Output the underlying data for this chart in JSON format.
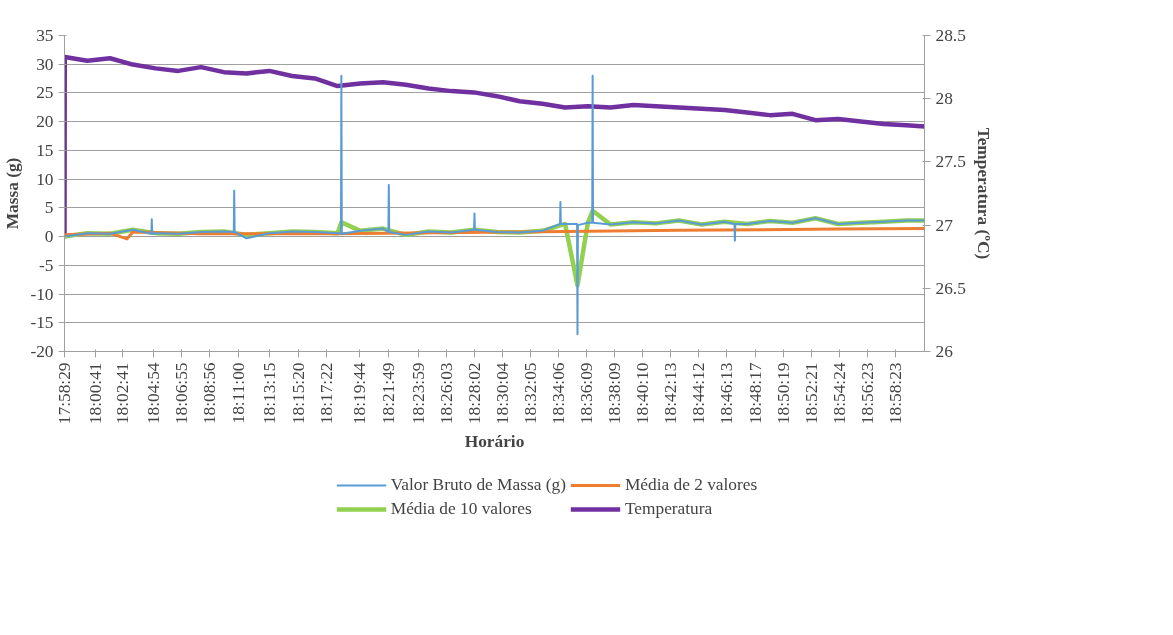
{
  "chart_data": {
    "type": "line",
    "xlabel": "Horário",
    "ylabel": "Massa (g)",
    "y2label": "Temperatura (ºC)",
    "xlim": [
      17.9747,
      19.0084
    ],
    "xticks": [
      {
        "value": 17.97472,
        "label": "17:58:29"
      },
      {
        "value": 18.01139,
        "label": "18:00:41"
      },
      {
        "value": 18.04472,
        "label": "18:02:41"
      },
      {
        "value": 18.08167,
        "label": "18:04:54"
      },
      {
        "value": 18.11528,
        "label": "18:06:55"
      },
      {
        "value": 18.14889,
        "label": "18:08:56"
      },
      {
        "value": 18.18333,
        "label": "18:11:00"
      },
      {
        "value": 18.22083,
        "label": "18:13:15"
      },
      {
        "value": 18.25556,
        "label": "18:15:20"
      },
      {
        "value": 18.28944,
        "label": "18:17:22"
      },
      {
        "value": 18.32889,
        "label": "18:19:44"
      },
      {
        "value": 18.36361,
        "label": "18:21:49"
      },
      {
        "value": 18.39972,
        "label": "18:23:59"
      },
      {
        "value": 18.43417,
        "label": "18:26:03"
      },
      {
        "value": 18.46722,
        "label": "18:28:02"
      },
      {
        "value": 18.50111,
        "label": "18:30:04"
      },
      {
        "value": 18.53472,
        "label": "18:32:05"
      },
      {
        "value": 18.56833,
        "label": "18:34:06"
      },
      {
        "value": 18.6025,
        "label": "18:36:09"
      },
      {
        "value": 18.63583,
        "label": "18:38:09"
      },
      {
        "value": 18.66944,
        "label": "18:40:10"
      },
      {
        "value": 18.70361,
        "label": "18:42:13"
      },
      {
        "value": 18.73667,
        "label": "18:44:12"
      },
      {
        "value": 18.77028,
        "label": "18:46:13"
      },
      {
        "value": 18.80472,
        "label": "18:48:17"
      },
      {
        "value": 18.83861,
        "label": "18:50:19"
      },
      {
        "value": 18.8725,
        "label": "18:52:21"
      },
      {
        "value": 18.90667,
        "label": "18:54:24"
      },
      {
        "value": 18.93972,
        "label": "18:56:23"
      },
      {
        "value": 18.97306,
        "label": "18:58:23"
      }
    ],
    "ylim": [
      -20,
      35
    ],
    "yticks": [
      -20,
      -15,
      -10,
      -5,
      0,
      5,
      10,
      15,
      20,
      25,
      30,
      35
    ],
    "y2lim": [
      26,
      28.5
    ],
    "y2ticks": [
      26,
      26.5,
      27,
      27.5,
      28,
      28.5
    ],
    "grid": "y",
    "legend": "bottom",
    "marker": "none",
    "line_style": "solid",
    "series": [
      {
        "name": "Valor Bruto de Massa (g)",
        "color": "#5b9bd5",
        "x": [
          17.9747,
          18.0021,
          18.0294,
          18.0568,
          18.0791,
          18.0796,
          18.0801,
          18.0841,
          18.1115,
          18.1388,
          18.1662,
          18.1782,
          18.1787,
          18.1792,
          18.1935,
          18.2209,
          18.2482,
          18.2756,
          18.3029,
          18.307,
          18.3075,
          18.308,
          18.3303,
          18.3576,
          18.364,
          18.3645,
          18.365,
          18.385,
          18.4123,
          18.4397,
          18.467,
          18.4675,
          18.468,
          18.4944,
          18.5217,
          18.5491,
          18.5703,
          18.5708,
          18.5713,
          18.5764,
          18.5908,
          18.5913,
          18.5918,
          18.6038,
          18.609,
          18.6095,
          18.61,
          18.6311,
          18.6585,
          18.6858,
          18.7132,
          18.7405,
          18.7679,
          18.78,
          18.7805,
          18.781,
          18.7952,
          18.8226,
          18.8499,
          18.8773,
          18.9046,
          18.932,
          18.9593,
          18.9867,
          19.0084
        ],
        "values": [
          0.0,
          0.6,
          0.5,
          1.2,
          0.5,
          3,
          0.5,
          0.6,
          0.5,
          0.8,
          0.9,
          0.8,
          8,
          0.8,
          -0.3,
          0.6,
          0.9,
          0.8,
          0.6,
          0.5,
          28,
          0.5,
          1.0,
          1.4,
          0.8,
          9,
          0.8,
          0.3,
          0.9,
          0.7,
          1.2,
          4,
          1.2,
          0.8,
          0.7,
          1.0,
          2.2,
          6,
          2.2,
          2.2,
          2.2,
          -17,
          2.0,
          2.4,
          2.4,
          28,
          2.4,
          2.1,
          2.5,
          2.3,
          2.8,
          2.1,
          2.6,
          2.2,
          -0.7,
          2.2,
          2.2,
          2.7,
          2.4,
          3.2,
          2.2,
          2.4,
          2.6,
          2.8,
          2.8
        ]
      },
      {
        "name": "Média de 2 valores",
        "color": "#ed7d31",
        "x": [
          17.9747,
          18.0294,
          18.0499,
          18.0568,
          18.1388,
          18.3029,
          18.5217,
          18.7132,
          18.9046,
          19.0084
        ],
        "values": [
          0.3,
          0.6,
          -0.4,
          0.8,
          0.5,
          0.5,
          0.8,
          1.1,
          1.3,
          1.4
        ]
      },
      {
        "name": "Média de 10 valores",
        "color": "#92d050",
        "x": [
          17.9747,
          18.0021,
          18.0294,
          18.0568,
          18.0841,
          18.1115,
          18.1388,
          18.1662,
          18.1935,
          18.2209,
          18.2482,
          18.2756,
          18.3029,
          18.3075,
          18.3303,
          18.3576,
          18.385,
          18.4123,
          18.4397,
          18.467,
          18.4944,
          18.5217,
          18.5491,
          18.5764,
          18.5913,
          18.6038,
          18.6095,
          18.6311,
          18.6585,
          18.6858,
          18.7132,
          18.7405,
          18.7679,
          18.7952,
          18.8226,
          18.8499,
          18.8773,
          18.9046,
          18.932,
          18.9593,
          18.9867,
          19.0084
        ],
        "values": [
          0.0,
          0.6,
          0.5,
          1.2,
          0.6,
          0.5,
          0.8,
          0.9,
          0.3,
          0.6,
          0.9,
          0.8,
          0.6,
          2.5,
          1.0,
          1.4,
          0.3,
          0.9,
          0.7,
          1.2,
          0.8,
          0.7,
          1.0,
          2.2,
          -8.5,
          2.4,
          4.5,
          2.1,
          2.5,
          2.3,
          2.8,
          2.1,
          2.6,
          2.2,
          2.7,
          2.4,
          3.2,
          2.2,
          2.4,
          2.6,
          2.8,
          2.8
        ]
      },
      {
        "name": "Temperatura",
        "color": "#7030a0",
        "axis": "y2",
        "x": [
          17.9747,
          17.975,
          18.0021,
          18.0294,
          18.0568,
          18.0841,
          18.1115,
          18.1388,
          18.1662,
          18.1935,
          18.2209,
          18.2482,
          18.2756,
          18.3029,
          18.3303,
          18.3576,
          18.385,
          18.4123,
          18.4397,
          18.467,
          18.4944,
          18.5217,
          18.5491,
          18.5764,
          18.6038,
          18.6311,
          18.6585,
          18.6858,
          18.7132,
          18.7405,
          18.7679,
          18.7952,
          18.8226,
          18.8499,
          18.8773,
          18.9046,
          18.932,
          18.9593,
          18.9867,
          19.0084
        ],
        "values": [
          26.9,
          28.33,
          28.3,
          28.32,
          28.27,
          28.24,
          28.22,
          28.25,
          28.21,
          28.2,
          28.22,
          28.18,
          28.16,
          28.1,
          28.12,
          28.13,
          28.11,
          28.08,
          28.06,
          28.05,
          28.02,
          27.98,
          27.96,
          27.93,
          27.94,
          27.93,
          27.95,
          27.94,
          27.93,
          27.92,
          27.91,
          27.89,
          27.87,
          27.88,
          27.83,
          27.84,
          27.82,
          27.8,
          27.79,
          27.78
        ]
      }
    ]
  }
}
